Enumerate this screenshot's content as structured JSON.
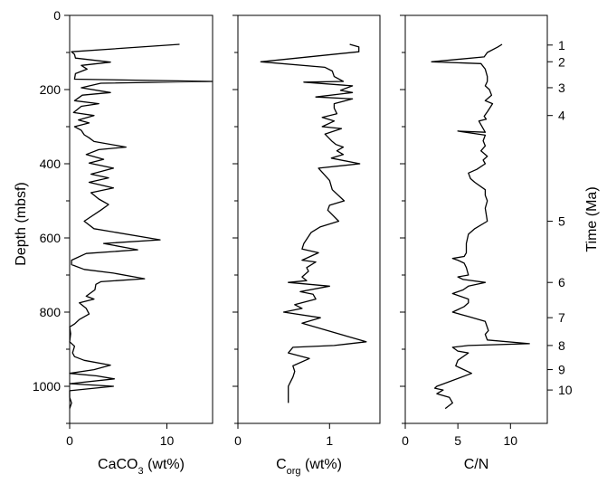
{
  "chart_data": {
    "type": "line",
    "shared_axes": {
      "y_label": "Depth (mbsf)",
      "y_ticks": [
        "0",
        "200",
        "400",
        "600",
        "800",
        "1000"
      ],
      "y_tick_values": [
        0,
        200,
        400,
        600,
        800,
        1000
      ],
      "y_range": [
        0,
        1100
      ],
      "y_inverted": true,
      "right_label": "Time (Ma)",
      "time_ticks": [
        {
          "label": "1",
          "depth": 80
        },
        {
          "label": "2",
          "depth": 125
        },
        {
          "label": "3",
          "depth": 195
        },
        {
          "label": "4",
          "depth": 270
        },
        {
          "label": "5",
          "depth": 555
        },
        {
          "label": "6",
          "depth": 720
        },
        {
          "label": "7",
          "depth": 815
        },
        {
          "label": "8",
          "depth": 890
        },
        {
          "label": "9",
          "depth": 955
        },
        {
          "label": "10",
          "depth": 1010
        }
      ]
    },
    "panels": [
      {
        "id": "caco3",
        "xlabel_main": "CaCO",
        "xlabel_sub": "3",
        "xlabel_rest": " (wt%)",
        "x_range": [
          0,
          14.7
        ],
        "x_ticks": [
          "0",
          "10"
        ],
        "x_tick_values": [
          0,
          10
        ],
        "points": [
          [
            11.3,
            78
          ],
          [
            0.2,
            98
          ],
          [
            0.5,
            105
          ],
          [
            0.6,
            115
          ],
          [
            4.2,
            126
          ],
          [
            1.2,
            135
          ],
          [
            1.8,
            145
          ],
          [
            0.6,
            157
          ],
          [
            0.5,
            172
          ],
          [
            14.7,
            178
          ],
          [
            3.2,
            183
          ],
          [
            1.2,
            195
          ],
          [
            4.2,
            208
          ],
          [
            1.3,
            215
          ],
          [
            0.5,
            230
          ],
          [
            3.0,
            238
          ],
          [
            1.2,
            245
          ],
          [
            0.4,
            262
          ],
          [
            2.5,
            270
          ],
          [
            0.9,
            282
          ],
          [
            2.0,
            290
          ],
          [
            0.5,
            300
          ],
          [
            1.2,
            310
          ],
          [
            1.5,
            322
          ],
          [
            2.0,
            330
          ],
          [
            2.5,
            340
          ],
          [
            5.8,
            355
          ],
          [
            3.0,
            362
          ],
          [
            1.7,
            375
          ],
          [
            3.5,
            388
          ],
          [
            2.0,
            398
          ],
          [
            4.5,
            412
          ],
          [
            2.2,
            428
          ],
          [
            4.0,
            438
          ],
          [
            2.0,
            450
          ],
          [
            4.5,
            465
          ],
          [
            2.2,
            478
          ],
          [
            3.0,
            495
          ],
          [
            4.0,
            510
          ],
          [
            3.2,
            525
          ],
          [
            1.5,
            555
          ],
          [
            2.5,
            575
          ],
          [
            9.3,
            605
          ],
          [
            3.5,
            615
          ],
          [
            7.0,
            632
          ],
          [
            1.7,
            642
          ],
          [
            0.2,
            660
          ],
          [
            0.2,
            672
          ],
          [
            1.5,
            685
          ],
          [
            4.5,
            695
          ],
          [
            7.7,
            710
          ],
          [
            3.2,
            718
          ],
          [
            2.7,
            725
          ],
          [
            2.6,
            740
          ],
          [
            1.7,
            757
          ],
          [
            2.5,
            765
          ],
          [
            1.0,
            775
          ],
          [
            1.7,
            790
          ],
          [
            2.0,
            805
          ],
          [
            1.0,
            820
          ],
          [
            0.5,
            832
          ],
          [
            0.0,
            840
          ],
          [
            0.1,
            858
          ],
          [
            0.0,
            880
          ],
          [
            0.5,
            892
          ],
          [
            0.3,
            910
          ],
          [
            0.5,
            920
          ],
          [
            1.5,
            930
          ],
          [
            4.2,
            943
          ],
          [
            2.5,
            955
          ],
          [
            0.0,
            965
          ],
          [
            2.8,
            972
          ],
          [
            4.6,
            980
          ],
          [
            0.0,
            993
          ],
          [
            4.5,
            1000
          ],
          [
            0.0,
            1012
          ],
          [
            0.0,
            1030
          ],
          [
            0.2,
            1045
          ],
          [
            0.0,
            1060
          ]
        ]
      },
      {
        "id": "corg",
        "xlabel_main": "C",
        "xlabel_sub": "org",
        "xlabel_rest": " (wt%)",
        "x_range": [
          0,
          1.55
        ],
        "x_ticks": [
          "0",
          "1"
        ],
        "x_tick_values": [
          0,
          1
        ],
        "points": [
          [
            1.22,
            78
          ],
          [
            1.32,
            85
          ],
          [
            1.32,
            98
          ],
          [
            0.25,
            125
          ],
          [
            0.95,
            140
          ],
          [
            1.03,
            150
          ],
          [
            1.05,
            165
          ],
          [
            1.15,
            178
          ],
          [
            0.72,
            180
          ],
          [
            1.25,
            190
          ],
          [
            1.12,
            202
          ],
          [
            1.25,
            208
          ],
          [
            0.85,
            220
          ],
          [
            1.25,
            225
          ],
          [
            1.05,
            238
          ],
          [
            1.05,
            250
          ],
          [
            1.08,
            265
          ],
          [
            0.92,
            275
          ],
          [
            1.05,
            285
          ],
          [
            0.92,
            300
          ],
          [
            1.13,
            305
          ],
          [
            0.95,
            320
          ],
          [
            1.03,
            340
          ],
          [
            1.07,
            348
          ],
          [
            1.15,
            355
          ],
          [
            1.08,
            365
          ],
          [
            1.15,
            375
          ],
          [
            1.02,
            385
          ],
          [
            1.33,
            400
          ],
          [
            0.88,
            412
          ],
          [
            1.0,
            445
          ],
          [
            1.03,
            470
          ],
          [
            1.16,
            500
          ],
          [
            1.0,
            512
          ],
          [
            0.98,
            525
          ],
          [
            1.1,
            555
          ],
          [
            0.9,
            570
          ],
          [
            0.8,
            585
          ],
          [
            0.72,
            615
          ],
          [
            0.7,
            630
          ],
          [
            0.88,
            640
          ],
          [
            0.7,
            660
          ],
          [
            0.85,
            665
          ],
          [
            0.75,
            680
          ],
          [
            0.77,
            690
          ],
          [
            0.7,
            705
          ],
          [
            0.75,
            715
          ],
          [
            0.55,
            720
          ],
          [
            1.0,
            730
          ],
          [
            0.68,
            745
          ],
          [
            0.82,
            752
          ],
          [
            0.85,
            765
          ],
          [
            0.62,
            780
          ],
          [
            0.7,
            790
          ],
          [
            0.5,
            800
          ],
          [
            0.9,
            815
          ],
          [
            0.7,
            830
          ],
          [
            1.4,
            880
          ],
          [
            1.05,
            890
          ],
          [
            0.6,
            895
          ],
          [
            0.55,
            910
          ],
          [
            0.78,
            925
          ],
          [
            0.6,
            945
          ],
          [
            0.62,
            960
          ],
          [
            0.6,
            975
          ],
          [
            0.58,
            985
          ],
          [
            0.55,
            1000
          ],
          [
            0.55,
            1025
          ],
          [
            0.55,
            1045
          ]
        ]
      },
      {
        "id": "cn",
        "xlabel_main": "C/N",
        "xlabel_sub": "",
        "xlabel_rest": "",
        "x_range": [
          0,
          13.5
        ],
        "x_ticks": [
          "0",
          "5",
          "10"
        ],
        "x_tick_values": [
          0,
          5,
          10
        ],
        "points": [
          [
            9.2,
            78
          ],
          [
            8.8,
            85
          ],
          [
            7.8,
            100
          ],
          [
            7.5,
            112
          ],
          [
            2.5,
            125
          ],
          [
            7.2,
            130
          ],
          [
            7.6,
            145
          ],
          [
            7.8,
            165
          ],
          [
            7.8,
            178
          ],
          [
            7.6,
            190
          ],
          [
            8.0,
            200
          ],
          [
            8.2,
            215
          ],
          [
            7.6,
            230
          ],
          [
            8.3,
            238
          ],
          [
            7.8,
            260
          ],
          [
            7.5,
            272
          ],
          [
            7.7,
            280
          ],
          [
            7.0,
            285
          ],
          [
            7.2,
            295
          ],
          [
            7.6,
            315
          ],
          [
            5.0,
            312
          ],
          [
            7.6,
            323
          ],
          [
            7.4,
            338
          ],
          [
            7.6,
            352
          ],
          [
            7.2,
            365
          ],
          [
            7.8,
            380
          ],
          [
            7.4,
            390
          ],
          [
            7.6,
            400
          ],
          [
            6.8,
            415
          ],
          [
            6.0,
            425
          ],
          [
            6.2,
            440
          ],
          [
            6.6,
            450
          ],
          [
            7.6,
            470
          ],
          [
            7.6,
            485
          ],
          [
            7.8,
            500
          ],
          [
            7.6,
            520
          ],
          [
            7.8,
            555
          ],
          [
            6.6,
            575
          ],
          [
            6.0,
            590
          ],
          [
            5.8,
            615
          ],
          [
            5.8,
            640
          ],
          [
            5.6,
            650
          ],
          [
            4.5,
            655
          ],
          [
            5.0,
            660
          ],
          [
            5.6,
            668
          ],
          [
            5.8,
            680
          ],
          [
            6.0,
            700
          ],
          [
            5.0,
            705
          ],
          [
            5.5,
            712
          ],
          [
            7.6,
            720
          ],
          [
            6.0,
            730
          ],
          [
            5.5,
            740
          ],
          [
            4.5,
            750
          ],
          [
            6.0,
            765
          ],
          [
            6.0,
            775
          ],
          [
            5.6,
            785
          ],
          [
            4.5,
            800
          ],
          [
            6.0,
            812
          ],
          [
            7.6,
            825
          ],
          [
            7.9,
            850
          ],
          [
            7.6,
            860
          ],
          [
            7.8,
            875
          ],
          [
            11.8,
            885
          ],
          [
            6.0,
            890
          ],
          [
            4.5,
            895
          ],
          [
            5.0,
            905
          ],
          [
            6.0,
            910
          ],
          [
            5.0,
            930
          ],
          [
            4.8,
            945
          ],
          [
            6.3,
            965
          ],
          [
            3.0,
            1000
          ],
          [
            2.8,
            1005
          ],
          [
            3.6,
            1010
          ],
          [
            3.0,
            1020
          ],
          [
            4.2,
            1030
          ],
          [
            4.5,
            1045
          ],
          [
            3.8,
            1060
          ]
        ]
      }
    ]
  }
}
